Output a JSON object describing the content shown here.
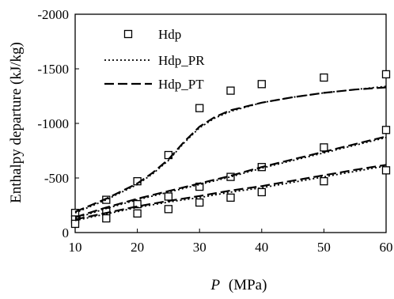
{
  "chart_data": {
    "type": "scatter",
    "title": "",
    "xlabel_var": "P",
    "xlabel_unit": "(MPa)",
    "ylabel": "Enthalpy departure (kJ/kg)",
    "xlim": [
      10,
      60
    ],
    "ylim": [
      0,
      -2000
    ],
    "y_axis_inverted": true,
    "x_ticks": [
      "10",
      "20",
      "30",
      "40",
      "50",
      "60"
    ],
    "y_ticks": [
      "-2000",
      "-1500",
      "-1000",
      "-500",
      "0"
    ],
    "x_tick_values": [
      10,
      20,
      30,
      40,
      50,
      60
    ],
    "y_tick_values": [
      -2000,
      -1500,
      -1000,
      -500,
      0
    ],
    "grid": false,
    "legend_position": "top-left",
    "series": [
      {
        "name": "Hdp",
        "style": "square-markers",
        "groups": [
          {
            "x": [
              10,
              15,
              20,
              25,
              30,
              35,
              40,
              50,
              60
            ],
            "y": [
              -180,
              -300,
              -470,
              -710,
              -1140,
              -1300,
              -1360,
              -1420,
              -1450
            ]
          },
          {
            "x": [
              10,
              15,
              20,
              25,
              30,
              35,
              40,
              50,
              60
            ],
            "y": [
              -120,
              -190,
              -260,
              -330,
              -420,
              -510,
              -600,
              -780,
              -940
            ]
          },
          {
            "x": [
              10,
              15,
              20,
              25,
              30,
              35,
              40,
              50,
              60
            ],
            "y": [
              -80,
              -130,
              -175,
              -215,
              -275,
              -320,
              -370,
              -470,
              -570
            ]
          }
        ]
      },
      {
        "name": "Hdp_PR",
        "style": "dotted-line",
        "groups": [
          {
            "x": [
              10,
              12.5,
              15,
              17.5,
              20,
              22.5,
              25,
              27.5,
              30,
              32.5,
              35,
              40,
              45,
              50,
              55,
              60
            ],
            "y": [
              -180,
              -240,
              -300,
              -370,
              -440,
              -540,
              -660,
              -820,
              -960,
              -1050,
              -1110,
              -1190,
              -1240,
              -1280,
              -1310,
              -1340
            ]
          },
          {
            "x": [
              10,
              15,
              20,
              25,
              30,
              35,
              40,
              45,
              50,
              55,
              60
            ],
            "y": [
              -130,
              -220,
              -300,
              -370,
              -440,
              -510,
              -590,
              -660,
              -730,
              -800,
              -870
            ]
          },
          {
            "x": [
              10,
              15,
              20,
              25,
              30,
              35,
              40,
              45,
              50,
              55,
              60
            ],
            "y": [
              -110,
              -170,
              -230,
              -280,
              -320,
              -370,
              -410,
              -460,
              -510,
              -560,
              -610
            ]
          }
        ]
      },
      {
        "name": "Hdp_PT",
        "style": "dashed-line",
        "groups": [
          {
            "x": [
              10,
              12.5,
              15,
              17.5,
              20,
              22.5,
              25,
              27.5,
              30,
              32.5,
              35,
              40,
              45,
              50,
              55,
              60
            ],
            "y": [
              -190,
              -250,
              -310,
              -380,
              -450,
              -550,
              -670,
              -830,
              -970,
              -1060,
              -1120,
              -1190,
              -1240,
              -1280,
              -1310,
              -1330
            ]
          },
          {
            "x": [
              10,
              15,
              20,
              25,
              30,
              35,
              40,
              45,
              50,
              55,
              60
            ],
            "y": [
              -140,
              -230,
              -310,
              -380,
              -450,
              -520,
              -600,
              -670,
              -740,
              -810,
              -880
            ]
          },
          {
            "x": [
              10,
              15,
              20,
              25,
              30,
              35,
              40,
              45,
              50,
              55,
              60
            ],
            "y": [
              -120,
              -180,
              -240,
              -290,
              -335,
              -385,
              -425,
              -475,
              -525,
              -575,
              -620
            ]
          }
        ]
      }
    ]
  }
}
